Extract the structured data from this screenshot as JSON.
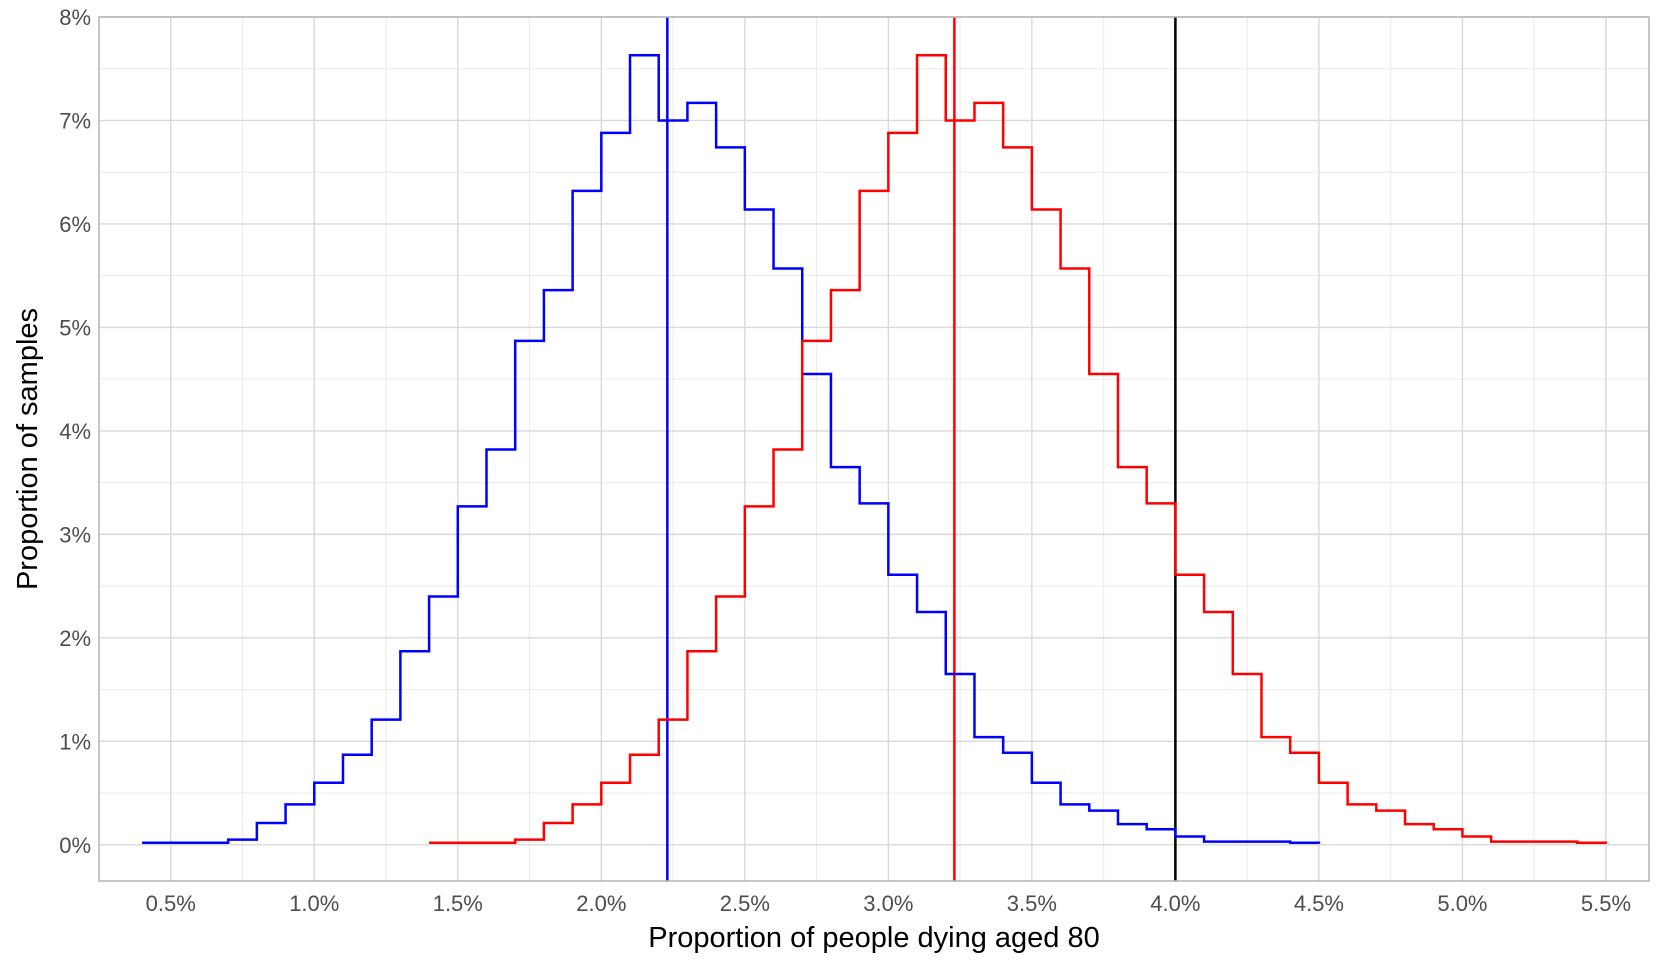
{
  "chart_data": {
    "type": "line",
    "step": true,
    "title": "",
    "xlabel": "Proportion of people dying aged 80",
    "ylabel": "Proportion of samples",
    "xlim": [
      0.25,
      5.65
    ],
    "ylim": [
      -0.35,
      8.0
    ],
    "x_ticks": [
      0.5,
      1.0,
      1.5,
      2.0,
      2.5,
      3.0,
      3.5,
      4.0,
      4.5,
      5.0,
      5.5
    ],
    "x_tick_labels": [
      "0.5%",
      "1.0%",
      "1.5%",
      "2.0%",
      "2.5%",
      "3.0%",
      "3.5%",
      "4.0%",
      "4.5%",
      "5.0%",
      "5.5%"
    ],
    "y_ticks": [
      0,
      1,
      2,
      3,
      4,
      5,
      6,
      7,
      8
    ],
    "y_tick_labels": [
      "0%",
      "1%",
      "2%",
      "3%",
      "4%",
      "5%",
      "6%",
      "7%",
      "8%"
    ],
    "grid": true,
    "legend": "none",
    "series": [
      {
        "color": "#0000ff",
        "x": [
          0.4,
          0.5,
          0.6,
          0.7,
          0.8,
          0.9,
          1.0,
          1.1,
          1.2,
          1.3,
          1.4,
          1.5,
          1.6,
          1.7,
          1.8,
          1.9,
          2.0,
          2.1,
          2.2,
          2.3,
          2.4,
          2.5,
          2.6,
          2.7,
          2.8,
          2.9,
          3.0,
          3.1,
          3.2,
          3.3,
          3.4,
          3.5,
          3.6,
          3.7,
          3.8,
          3.9,
          4.0,
          4.1,
          4.2,
          4.3,
          4.4,
          4.5
        ],
        "y": [
          0.02,
          0.02,
          0.02,
          0.05,
          0.21,
          0.39,
          0.6,
          0.87,
          1.21,
          1.87,
          2.4,
          3.27,
          3.82,
          4.87,
          5.36,
          6.32,
          6.88,
          7.63,
          7.0,
          7.17,
          6.74,
          6.14,
          5.57,
          4.55,
          3.65,
          3.3,
          2.61,
          2.25,
          1.65,
          1.04,
          0.89,
          0.6,
          0.39,
          0.33,
          0.2,
          0.15,
          0.08,
          0.03,
          0.03,
          0.03,
          0.02,
          0.01
        ]
      },
      {
        "color": "#ff0000",
        "x": [
          1.4,
          1.5,
          1.6,
          1.7,
          1.8,
          1.9,
          2.0,
          2.1,
          2.2,
          2.3,
          2.4,
          2.5,
          2.6,
          2.7,
          2.8,
          2.9,
          3.0,
          3.1,
          3.2,
          3.3,
          3.4,
          3.5,
          3.6,
          3.7,
          3.8,
          3.9,
          4.0,
          4.1,
          4.2,
          4.3,
          4.4,
          4.5,
          4.6,
          4.7,
          4.8,
          4.9,
          5.0,
          5.1,
          5.2,
          5.3,
          5.4,
          5.5
        ],
        "y": [
          0.02,
          0.02,
          0.02,
          0.05,
          0.21,
          0.39,
          0.6,
          0.87,
          1.21,
          1.87,
          2.4,
          3.27,
          3.82,
          4.87,
          5.36,
          6.32,
          6.88,
          7.63,
          7.0,
          7.17,
          6.74,
          6.14,
          5.57,
          4.55,
          3.65,
          3.3,
          2.61,
          2.25,
          1.65,
          1.04,
          0.89,
          0.6,
          0.39,
          0.33,
          0.2,
          0.15,
          0.08,
          0.03,
          0.03,
          0.03,
          0.02,
          0.01
        ]
      }
    ],
    "vlines": [
      {
        "x": 2.23,
        "color": "#0000ff"
      },
      {
        "x": 3.23,
        "color": "#ff0000"
      },
      {
        "x": 4.0,
        "color": "#000000"
      }
    ]
  }
}
